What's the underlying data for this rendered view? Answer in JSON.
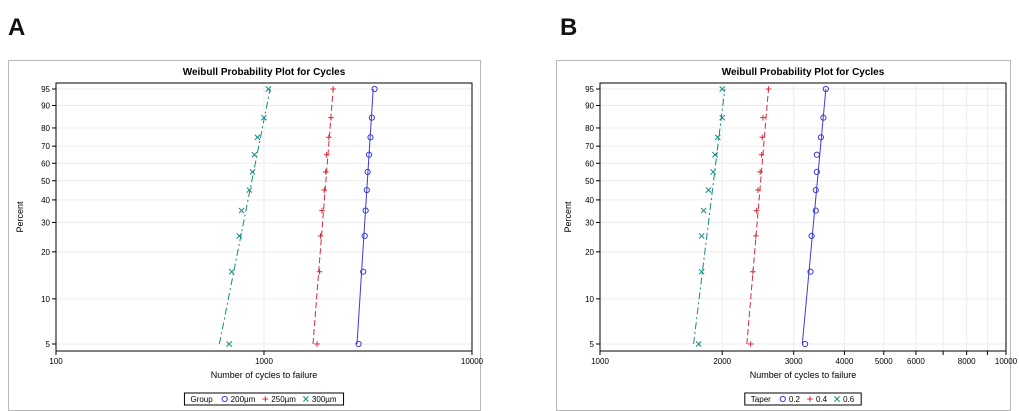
{
  "panels": [
    {
      "letter": "A",
      "chart_data": {
        "type": "scatter",
        "title": "Weibull Probability Plot for Cycles",
        "xlabel": "Number of cycles to failure",
        "ylabel": "Percent",
        "x_scale": "log",
        "y_scale": "weibull",
        "xlim": [
          100,
          10000
        ],
        "ylim": [
          5,
          95
        ],
        "x_ticks": [
          100,
          1000,
          10000
        ],
        "x_tick_labels": [
          "100",
          "1000",
          "10000"
        ],
        "y_ticks": [
          5,
          10,
          20,
          30,
          40,
          50,
          60,
          70,
          80,
          90,
          95
        ],
        "y_tick_labels": [
          "5",
          "10",
          "20",
          "30",
          "40",
          "50",
          "60",
          "70",
          "80",
          "90",
          "95"
        ],
        "legend": {
          "title": "Group",
          "placement": "bottom"
        },
        "series": [
          {
            "name": "200µm",
            "marker": "circle",
            "line": "solid",
            "color": "#3b3bd6",
            "points": [
              [
                2850,
                5
              ],
              [
                3000,
                15
              ],
              [
                3050,
                25
              ],
              [
                3080,
                35
              ],
              [
                3120,
                45
              ],
              [
                3150,
                55
              ],
              [
                3200,
                65
              ],
              [
                3250,
                75
              ],
              [
                3300,
                85
              ],
              [
                3400,
                95
              ]
            ],
            "fit": [
              [
                2800,
                5
              ],
              [
                3350,
                95
              ]
            ]
          },
          {
            "name": "250µm",
            "marker": "plus",
            "line": "dash",
            "color": "#d62a3a",
            "points": [
              [
                1800,
                5
              ],
              [
                1850,
                15
              ],
              [
                1870,
                25
              ],
              [
                1900,
                35
              ],
              [
                1950,
                45
              ],
              [
                1980,
                55
              ],
              [
                2000,
                65
              ],
              [
                2050,
                75
              ],
              [
                2100,
                85
              ],
              [
                2150,
                95
              ]
            ],
            "fit": [
              [
                1720,
                5
              ],
              [
                2150,
                95
              ]
            ]
          },
          {
            "name": "300µm",
            "marker": "x",
            "line": "dashdot",
            "color": "#138a80",
            "points": [
              [
                680,
                5
              ],
              [
                700,
                15
              ],
              [
                760,
                25
              ],
              [
                780,
                35
              ],
              [
                850,
                45
              ],
              [
                880,
                55
              ],
              [
                900,
                65
              ],
              [
                930,
                75
              ],
              [
                1000,
                85
              ],
              [
                1050,
                95
              ]
            ],
            "fit": [
              [
                610,
                5
              ],
              [
                1070,
                95
              ]
            ]
          }
        ]
      }
    },
    {
      "letter": "B",
      "chart_data": {
        "type": "scatter",
        "title": "Weibull Probability Plot for Cycles",
        "xlabel": "Number of cycles to failure",
        "ylabel": "Percent",
        "x_scale": "log",
        "y_scale": "weibull",
        "xlim": [
          1000,
          10000
        ],
        "ylim": [
          5,
          95
        ],
        "x_ticks": [
          1000,
          2000,
          3000,
          4000,
          5000,
          6000,
          8000,
          10000
        ],
        "x_tick_labels": [
          "1000",
          "2000",
          "3000",
          "4000",
          "5000",
          "6000",
          "8000",
          "10000"
        ],
        "x_minor_ticks": [
          7000,
          9000
        ],
        "y_ticks": [
          5,
          10,
          20,
          30,
          40,
          50,
          60,
          70,
          80,
          90,
          95
        ],
        "y_tick_labels": [
          "5",
          "10",
          "20",
          "30",
          "40",
          "50",
          "60",
          "70",
          "80",
          "90",
          "95"
        ],
        "legend": {
          "title": "Taper",
          "placement": "bottom"
        },
        "series": [
          {
            "name": "0.2",
            "marker": "circle",
            "line": "solid",
            "color": "#3b3bd6",
            "points": [
              [
                3200,
                5
              ],
              [
                3300,
                15
              ],
              [
                3320,
                25
              ],
              [
                3400,
                35
              ],
              [
                3400,
                45
              ],
              [
                3420,
                55
              ],
              [
                3420,
                65
              ],
              [
                3500,
                75
              ],
              [
                3550,
                85
              ],
              [
                3600,
                95
              ]
            ],
            "fit": [
              [
                3150,
                5
              ],
              [
                3600,
                95
              ]
            ]
          },
          {
            "name": "0.4",
            "marker": "plus",
            "line": "dash",
            "color": "#d62a3a",
            "points": [
              [
                2350,
                5
              ],
              [
                2380,
                15
              ],
              [
                2420,
                25
              ],
              [
                2430,
                35
              ],
              [
                2450,
                45
              ],
              [
                2480,
                55
              ],
              [
                2500,
                65
              ],
              [
                2510,
                75
              ],
              [
                2520,
                85
              ],
              [
                2600,
                95
              ]
            ],
            "fit": [
              [
                2300,
                5
              ],
              [
                2600,
                95
              ]
            ]
          },
          {
            "name": "0.6",
            "marker": "x",
            "line": "dashdot",
            "color": "#138a80",
            "points": [
              [
                1750,
                5
              ],
              [
                1780,
                15
              ],
              [
                1780,
                25
              ],
              [
                1800,
                35
              ],
              [
                1850,
                45
              ],
              [
                1900,
                55
              ],
              [
                1920,
                65
              ],
              [
                1950,
                75
              ],
              [
                2000,
                85
              ],
              [
                2000,
                95
              ]
            ],
            "fit": [
              [
                1700,
                5
              ],
              [
                2030,
                95
              ]
            ]
          }
        ]
      }
    }
  ]
}
